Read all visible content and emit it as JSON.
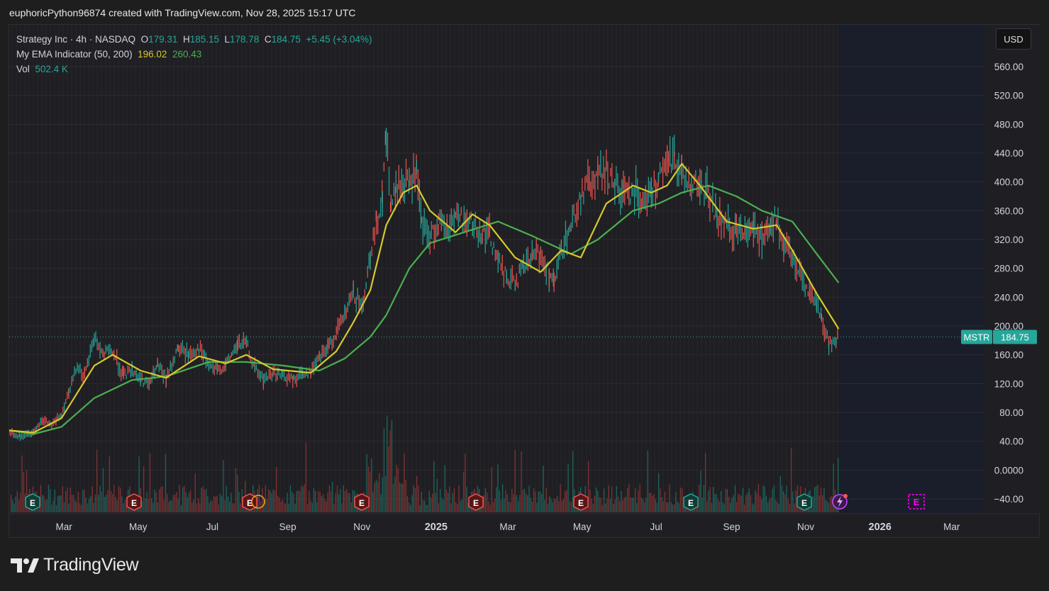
{
  "header": {
    "credit": "euphoricPython96874 created with TradingView.com, Nov 28, 2025 15:17 UTC"
  },
  "legend": {
    "symbol": "Strategy Inc · 4h · NASDAQ",
    "o_label": "O",
    "o_value": "179.31",
    "h_label": "H",
    "h_value": "185.15",
    "l_label": "L",
    "l_value": "178.78",
    "c_label": "C",
    "c_value": "184.75",
    "change": "+5.45 (+3.04%)",
    "ema_label": "My EMA Indicator (50, 200)",
    "ema50_value": "196.02",
    "ema200_value": "260.43",
    "vol_label": "Vol",
    "vol_value": "502.4 K"
  },
  "currency_button": "USD",
  "price_tag": {
    "symbol": "MSTR",
    "price": "184.75"
  },
  "brand": {
    "name": "TradingView"
  },
  "colors": {
    "up": "#26a69a",
    "down": "#ef5350",
    "ema50": "#d6c92b",
    "ema200": "#4caf50",
    "earnings_past": "#b71c1c",
    "earnings_future": "#ff00ff"
  },
  "chart_data": {
    "type": "line",
    "ylim": [
      -40,
      580
    ],
    "y_ticks": [
      "560.00",
      "520.00",
      "480.00",
      "440.00",
      "400.00",
      "360.00",
      "320.00",
      "280.00",
      "240.00",
      "200.00",
      "160.00",
      "120.00",
      "80.00",
      "40.00",
      "0.0000",
      "−40.00"
    ],
    "x_tick_labels": [
      "Mar",
      "May",
      "Jul",
      "Sep",
      "Nov",
      "2025",
      "Mar",
      "May",
      "Jul",
      "Sep",
      "Nov",
      "2026",
      "Mar"
    ],
    "series": [
      {
        "name": "Price",
        "points": [
          [
            "2024-01-16",
            54
          ],
          [
            "2024-01-25",
            46
          ],
          [
            "2024-02-05",
            53
          ],
          [
            "2024-02-12",
            70
          ],
          [
            "2024-02-20",
            62
          ],
          [
            "2024-02-28",
            78
          ],
          [
            "2024-03-05",
            110
          ],
          [
            "2024-03-12",
            145
          ],
          [
            "2024-03-18",
            130
          ],
          [
            "2024-03-26",
            185
          ],
          [
            "2024-04-02",
            160
          ],
          [
            "2024-04-10",
            165
          ],
          [
            "2024-04-19",
            130
          ],
          [
            "2024-04-26",
            140
          ],
          [
            "2024-05-03",
            125
          ],
          [
            "2024-05-10",
            120
          ],
          [
            "2024-05-17",
            145
          ],
          [
            "2024-05-24",
            125
          ],
          [
            "2024-06-03",
            170
          ],
          [
            "2024-06-12",
            160
          ],
          [
            "2024-06-20",
            170
          ],
          [
            "2024-06-28",
            145
          ],
          [
            "2024-07-05",
            138
          ],
          [
            "2024-07-12",
            145
          ],
          [
            "2024-07-22",
            175
          ],
          [
            "2024-07-29",
            175
          ],
          [
            "2024-08-05",
            140
          ],
          [
            "2024-08-12",
            125
          ],
          [
            "2024-08-20",
            135
          ],
          [
            "2024-08-28",
            130
          ],
          [
            "2024-09-06",
            125
          ],
          [
            "2024-09-13",
            135
          ],
          [
            "2024-09-20",
            135
          ],
          [
            "2024-09-27",
            160
          ],
          [
            "2024-10-04",
            170
          ],
          [
            "2024-10-11",
            190
          ],
          [
            "2024-10-18",
            215
          ],
          [
            "2024-10-25",
            245
          ],
          [
            "2024-11-01",
            225
          ],
          [
            "2024-11-08",
            300
          ],
          [
            "2024-11-13",
            345
          ],
          [
            "2024-11-18",
            380
          ],
          [
            "2024-11-21",
            470
          ],
          [
            "2024-11-25",
            360
          ],
          [
            "2024-11-29",
            390
          ],
          [
            "2024-12-05",
            395
          ],
          [
            "2024-12-10",
            400
          ],
          [
            "2024-12-16",
            410
          ],
          [
            "2024-12-20",
            340
          ],
          [
            "2024-12-27",
            320
          ],
          [
            "2025-01-03",
            345
          ],
          [
            "2025-01-10",
            335
          ],
          [
            "2025-01-17",
            355
          ],
          [
            "2025-01-24",
            345
          ],
          [
            "2025-01-31",
            340
          ],
          [
            "2025-02-07",
            330
          ],
          [
            "2025-02-14",
            330
          ],
          [
            "2025-02-21",
            290
          ],
          [
            "2025-02-28",
            265
          ],
          [
            "2025-03-07",
            260
          ],
          [
            "2025-03-14",
            280
          ],
          [
            "2025-03-21",
            295
          ],
          [
            "2025-03-28",
            300
          ],
          [
            "2025-04-04",
            275
          ],
          [
            "2025-04-08",
            255
          ],
          [
            "2025-04-14",
            305
          ],
          [
            "2025-04-22",
            340
          ],
          [
            "2025-04-30",
            380
          ],
          [
            "2025-05-07",
            400
          ],
          [
            "2025-05-14",
            410
          ],
          [
            "2025-05-21",
            415
          ],
          [
            "2025-05-28",
            395
          ],
          [
            "2025-06-04",
            385
          ],
          [
            "2025-06-12",
            390
          ],
          [
            "2025-06-20",
            380
          ],
          [
            "2025-06-27",
            385
          ],
          [
            "2025-07-03",
            400
          ],
          [
            "2025-07-10",
            425
          ],
          [
            "2025-07-16",
            440
          ],
          [
            "2025-07-22",
            410
          ],
          [
            "2025-07-30",
            400
          ],
          [
            "2025-08-06",
            395
          ],
          [
            "2025-08-13",
            385
          ],
          [
            "2025-08-20",
            350
          ],
          [
            "2025-08-28",
            340
          ],
          [
            "2025-09-05",
            330
          ],
          [
            "2025-09-12",
            335
          ],
          [
            "2025-09-19",
            340
          ],
          [
            "2025-09-26",
            320
          ],
          [
            "2025-10-03",
            345
          ],
          [
            "2025-10-08",
            345
          ],
          [
            "2025-10-14",
            310
          ],
          [
            "2025-10-21",
            295
          ],
          [
            "2025-10-28",
            275
          ],
          [
            "2025-11-04",
            245
          ],
          [
            "2025-11-10",
            235
          ],
          [
            "2025-11-14",
            205
          ],
          [
            "2025-11-20",
            175
          ],
          [
            "2025-11-26",
            182
          ],
          [
            "2025-11-28",
            184.75
          ]
        ]
      },
      {
        "name": "EMA 50",
        "points": [
          [
            "2024-01-16",
            55
          ],
          [
            "2024-02-05",
            52
          ],
          [
            "2024-02-28",
            72
          ],
          [
            "2024-03-26",
            145
          ],
          [
            "2024-04-10",
            160
          ],
          [
            "2024-05-03",
            138
          ],
          [
            "2024-05-24",
            128
          ],
          [
            "2024-06-20",
            158
          ],
          [
            "2024-07-12",
            148
          ],
          [
            "2024-07-29",
            160
          ],
          [
            "2024-08-20",
            140
          ],
          [
            "2024-09-20",
            135
          ],
          [
            "2024-10-11",
            165
          ],
          [
            "2024-10-25",
            205
          ],
          [
            "2024-11-08",
            250
          ],
          [
            "2024-11-21",
            340
          ],
          [
            "2024-12-05",
            385
          ],
          [
            "2024-12-16",
            395
          ],
          [
            "2024-12-27",
            360
          ],
          [
            "2025-01-17",
            330
          ],
          [
            "2025-01-31",
            355
          ],
          [
            "2025-02-14",
            340
          ],
          [
            "2025-03-07",
            295
          ],
          [
            "2025-03-28",
            275
          ],
          [
            "2025-04-14",
            305
          ],
          [
            "2025-04-30",
            295
          ],
          [
            "2025-05-21",
            370
          ],
          [
            "2025-06-12",
            395
          ],
          [
            "2025-06-27",
            385
          ],
          [
            "2025-07-10",
            395
          ],
          [
            "2025-07-22",
            425
          ],
          [
            "2025-08-06",
            395
          ],
          [
            "2025-08-28",
            345
          ],
          [
            "2025-09-19",
            335
          ],
          [
            "2025-10-08",
            340
          ],
          [
            "2025-10-21",
            305
          ],
          [
            "2025-11-10",
            245
          ],
          [
            "2025-11-28",
            196
          ]
        ]
      },
      {
        "name": "EMA 200",
        "points": [
          [
            "2024-01-16",
            55
          ],
          [
            "2024-02-05",
            50
          ],
          [
            "2024-02-28",
            60
          ],
          [
            "2024-03-26",
            100
          ],
          [
            "2024-04-26",
            125
          ],
          [
            "2024-05-24",
            130
          ],
          [
            "2024-06-28",
            150
          ],
          [
            "2024-07-29",
            150
          ],
          [
            "2024-08-28",
            145
          ],
          [
            "2024-09-27",
            138
          ],
          [
            "2024-10-18",
            155
          ],
          [
            "2024-11-08",
            185
          ],
          [
            "2024-11-21",
            215
          ],
          [
            "2024-12-10",
            280
          ],
          [
            "2024-12-27",
            315
          ],
          [
            "2025-01-24",
            330
          ],
          [
            "2025-02-21",
            345
          ],
          [
            "2025-03-21",
            325
          ],
          [
            "2025-04-22",
            300
          ],
          [
            "2025-05-14",
            320
          ],
          [
            "2025-06-12",
            360
          ],
          [
            "2025-07-03",
            370
          ],
          [
            "2025-07-22",
            385
          ],
          [
            "2025-08-13",
            395
          ],
          [
            "2025-09-05",
            380
          ],
          [
            "2025-09-26",
            360
          ],
          [
            "2025-10-21",
            345
          ],
          [
            "2025-11-10",
            300
          ],
          [
            "2025-11-28",
            260
          ]
        ]
      }
    ],
    "price_line": 184.75
  }
}
